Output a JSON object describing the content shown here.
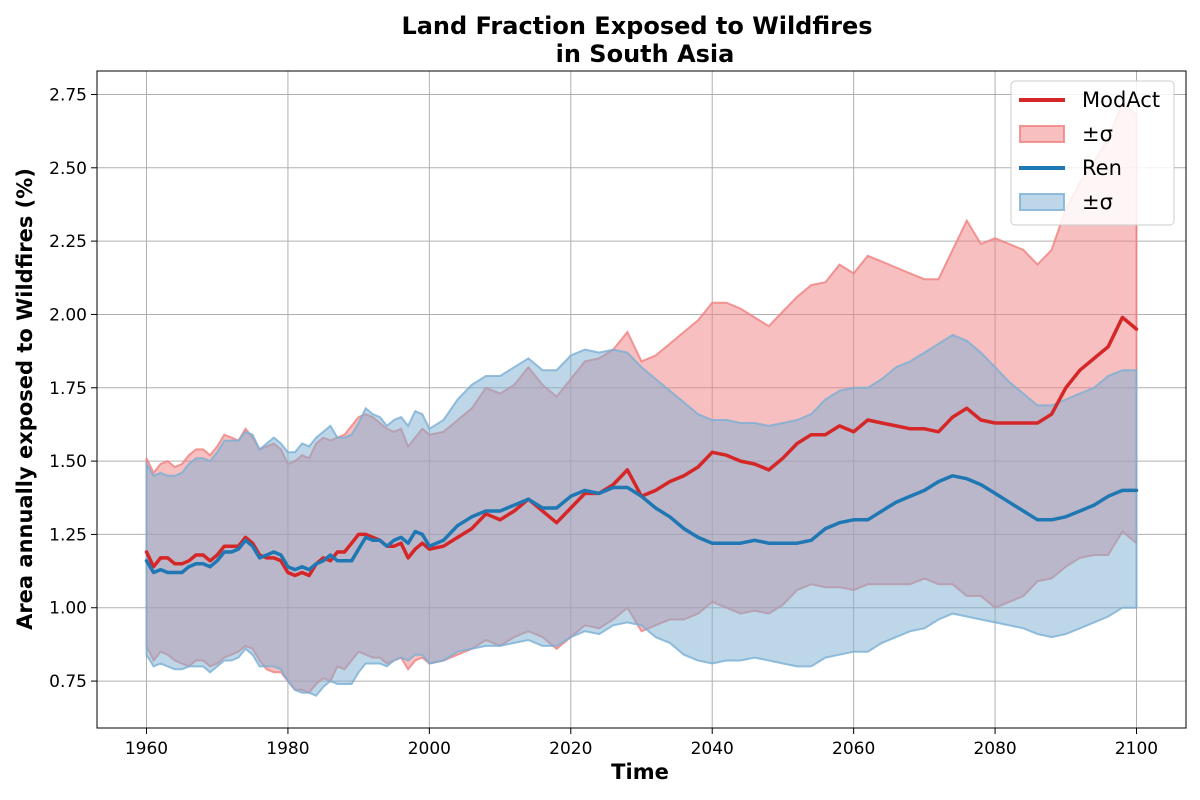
{
  "chart_data": {
    "type": "line",
    "title_line1": "Land Fraction Exposed to Wildfires",
    "title_line2": "in South Asia",
    "xlabel": "Time",
    "ylabel": "Area annually exposed to Wildfires (%)",
    "xlim": [
      1953,
      2107
    ],
    "ylim": [
      0.59,
      2.83
    ],
    "xticks": [
      1960,
      1980,
      2000,
      2020,
      2040,
      2060,
      2080,
      2100
    ],
    "yticks": [
      0.75,
      1.0,
      1.25,
      1.5,
      1.75,
      2.0,
      2.25,
      2.5,
      2.75
    ],
    "ytick_labels": [
      "0.75",
      "1.00",
      "1.25",
      "1.50",
      "1.75",
      "2.00",
      "2.25",
      "2.50",
      "2.75"
    ],
    "grid": true,
    "legend_position": "top-right",
    "legend": [
      {
        "label": "ModAct",
        "kind": "line",
        "series": 0
      },
      {
        "label": "±σ",
        "kind": "band",
        "series": 0
      },
      {
        "label": "Ren",
        "kind": "line",
        "series": 1
      },
      {
        "label": "±σ",
        "kind": "band",
        "series": 1
      }
    ],
    "series": [
      {
        "name": "ModAct",
        "color": "#d62728",
        "band_color": "#f08080",
        "x": [
          1960,
          1961,
          1962,
          1963,
          1964,
          1965,
          1966,
          1967,
          1968,
          1969,
          1970,
          1971,
          1972,
          1973,
          1974,
          1975,
          1976,
          1977,
          1978,
          1979,
          1980,
          1981,
          1982,
          1983,
          1984,
          1985,
          1986,
          1987,
          1988,
          1989,
          1990,
          1991,
          1992,
          1993,
          1994,
          1995,
          1996,
          1997,
          1998,
          1999,
          2000,
          2002,
          2004,
          2006,
          2008,
          2010,
          2012,
          2014,
          2016,
          2018,
          2020,
          2022,
          2024,
          2026,
          2028,
          2030,
          2032,
          2034,
          2036,
          2038,
          2040,
          2042,
          2044,
          2046,
          2048,
          2050,
          2052,
          2054,
          2056,
          2058,
          2060,
          2062,
          2064,
          2066,
          2068,
          2070,
          2072,
          2074,
          2076,
          2078,
          2080,
          2082,
          2084,
          2086,
          2088,
          2090,
          2092,
          2094,
          2096,
          2098,
          2100
        ],
        "mean": [
          1.19,
          1.14,
          1.17,
          1.17,
          1.15,
          1.15,
          1.16,
          1.18,
          1.18,
          1.16,
          1.18,
          1.21,
          1.21,
          1.21,
          1.24,
          1.22,
          1.18,
          1.17,
          1.17,
          1.16,
          1.12,
          1.11,
          1.12,
          1.11,
          1.15,
          1.17,
          1.16,
          1.19,
          1.19,
          1.22,
          1.25,
          1.25,
          1.24,
          1.23,
          1.21,
          1.21,
          1.22,
          1.17,
          1.2,
          1.22,
          1.2,
          1.21,
          1.24,
          1.27,
          1.32,
          1.3,
          1.33,
          1.37,
          1.33,
          1.29,
          1.34,
          1.39,
          1.39,
          1.42,
          1.47,
          1.38,
          1.4,
          1.43,
          1.45,
          1.48,
          1.53,
          1.52,
          1.5,
          1.49,
          1.47,
          1.51,
          1.56,
          1.59,
          1.59,
          1.62,
          1.6,
          1.64,
          1.63,
          1.62,
          1.61,
          1.61,
          1.6,
          1.65,
          1.68,
          1.64,
          1.63,
          1.63,
          1.63,
          1.63,
          1.66,
          1.75,
          1.81,
          1.85,
          1.89,
          1.99,
          1.95
        ],
        "upper": [
          1.51,
          1.46,
          1.49,
          1.5,
          1.48,
          1.49,
          1.52,
          1.54,
          1.54,
          1.52,
          1.55,
          1.59,
          1.58,
          1.57,
          1.61,
          1.58,
          1.54,
          1.55,
          1.56,
          1.54,
          1.49,
          1.5,
          1.52,
          1.51,
          1.56,
          1.58,
          1.57,
          1.58,
          1.59,
          1.62,
          1.65,
          1.66,
          1.65,
          1.63,
          1.61,
          1.6,
          1.61,
          1.55,
          1.58,
          1.61,
          1.59,
          1.6,
          1.64,
          1.68,
          1.75,
          1.73,
          1.76,
          1.82,
          1.76,
          1.72,
          1.78,
          1.84,
          1.85,
          1.88,
          1.94,
          1.84,
          1.86,
          1.9,
          1.94,
          1.98,
          2.04,
          2.04,
          2.02,
          1.99,
          1.96,
          2.01,
          2.06,
          2.1,
          2.11,
          2.17,
          2.14,
          2.2,
          2.18,
          2.16,
          2.14,
          2.12,
          2.12,
          2.22,
          2.32,
          2.24,
          2.26,
          2.24,
          2.22,
          2.17,
          2.22,
          2.36,
          2.45,
          2.52,
          2.6,
          2.72,
          2.68
        ],
        "lower": [
          0.87,
          0.82,
          0.85,
          0.84,
          0.82,
          0.81,
          0.8,
          0.82,
          0.82,
          0.8,
          0.81,
          0.83,
          0.84,
          0.85,
          0.87,
          0.86,
          0.82,
          0.79,
          0.78,
          0.78,
          0.75,
          0.72,
          0.72,
          0.71,
          0.74,
          0.76,
          0.75,
          0.8,
          0.79,
          0.82,
          0.85,
          0.84,
          0.83,
          0.83,
          0.81,
          0.82,
          0.83,
          0.79,
          0.82,
          0.83,
          0.81,
          0.82,
          0.84,
          0.86,
          0.89,
          0.87,
          0.9,
          0.92,
          0.9,
          0.86,
          0.9,
          0.94,
          0.93,
          0.96,
          1.0,
          0.92,
          0.94,
          0.96,
          0.96,
          0.98,
          1.02,
          1.0,
          0.98,
          0.99,
          0.98,
          1.01,
          1.06,
          1.08,
          1.07,
          1.07,
          1.06,
          1.08,
          1.08,
          1.08,
          1.08,
          1.1,
          1.08,
          1.08,
          1.04,
          1.04,
          1.0,
          1.02,
          1.04,
          1.09,
          1.1,
          1.14,
          1.17,
          1.18,
          1.18,
          1.26,
          1.22
        ]
      },
      {
        "name": "Ren",
        "color": "#1f77b4",
        "band_color": "#7bafd4",
        "x": [
          1960,
          1961,
          1962,
          1963,
          1964,
          1965,
          1966,
          1967,
          1968,
          1969,
          1970,
          1971,
          1972,
          1973,
          1974,
          1975,
          1976,
          1977,
          1978,
          1979,
          1980,
          1981,
          1982,
          1983,
          1984,
          1985,
          1986,
          1987,
          1988,
          1989,
          1990,
          1991,
          1992,
          1993,
          1994,
          1995,
          1996,
          1997,
          1998,
          1999,
          2000,
          2002,
          2004,
          2006,
          2008,
          2010,
          2012,
          2014,
          2016,
          2018,
          2020,
          2022,
          2024,
          2026,
          2028,
          2030,
          2032,
          2034,
          2036,
          2038,
          2040,
          2042,
          2044,
          2046,
          2048,
          2050,
          2052,
          2054,
          2056,
          2058,
          2060,
          2062,
          2064,
          2066,
          2068,
          2070,
          2072,
          2074,
          2076,
          2078,
          2080,
          2082,
          2084,
          2086,
          2088,
          2090,
          2092,
          2094,
          2096,
          2098,
          2100
        ],
        "mean": [
          1.16,
          1.12,
          1.13,
          1.12,
          1.12,
          1.12,
          1.14,
          1.15,
          1.15,
          1.14,
          1.16,
          1.19,
          1.19,
          1.2,
          1.23,
          1.21,
          1.17,
          1.18,
          1.19,
          1.18,
          1.14,
          1.13,
          1.14,
          1.13,
          1.15,
          1.16,
          1.18,
          1.16,
          1.16,
          1.16,
          1.2,
          1.24,
          1.23,
          1.23,
          1.21,
          1.23,
          1.24,
          1.22,
          1.26,
          1.25,
          1.21,
          1.23,
          1.28,
          1.31,
          1.33,
          1.33,
          1.35,
          1.37,
          1.34,
          1.34,
          1.38,
          1.4,
          1.39,
          1.41,
          1.41,
          1.38,
          1.34,
          1.31,
          1.27,
          1.24,
          1.22,
          1.22,
          1.22,
          1.23,
          1.22,
          1.22,
          1.22,
          1.23,
          1.27,
          1.29,
          1.3,
          1.3,
          1.33,
          1.36,
          1.38,
          1.4,
          1.43,
          1.45,
          1.44,
          1.42,
          1.39,
          1.36,
          1.33,
          1.3,
          1.3,
          1.31,
          1.33,
          1.35,
          1.38,
          1.4,
          1.4
        ],
        "upper": [
          1.49,
          1.45,
          1.46,
          1.45,
          1.45,
          1.46,
          1.49,
          1.51,
          1.51,
          1.5,
          1.53,
          1.57,
          1.57,
          1.57,
          1.6,
          1.59,
          1.54,
          1.56,
          1.58,
          1.56,
          1.53,
          1.53,
          1.56,
          1.55,
          1.58,
          1.6,
          1.62,
          1.58,
          1.58,
          1.59,
          1.63,
          1.68,
          1.66,
          1.65,
          1.62,
          1.64,
          1.65,
          1.62,
          1.67,
          1.66,
          1.61,
          1.64,
          1.71,
          1.76,
          1.79,
          1.79,
          1.82,
          1.85,
          1.81,
          1.81,
          1.86,
          1.88,
          1.87,
          1.88,
          1.87,
          1.82,
          1.78,
          1.74,
          1.7,
          1.66,
          1.64,
          1.64,
          1.63,
          1.63,
          1.62,
          1.63,
          1.64,
          1.66,
          1.71,
          1.74,
          1.75,
          1.75,
          1.78,
          1.82,
          1.84,
          1.87,
          1.9,
          1.93,
          1.91,
          1.87,
          1.82,
          1.77,
          1.73,
          1.69,
          1.69,
          1.71,
          1.73,
          1.75,
          1.79,
          1.81,
          1.81
        ],
        "lower": [
          0.84,
          0.8,
          0.81,
          0.8,
          0.79,
          0.79,
          0.8,
          0.8,
          0.8,
          0.78,
          0.8,
          0.82,
          0.82,
          0.83,
          0.86,
          0.84,
          0.8,
          0.8,
          0.8,
          0.79,
          0.75,
          0.72,
          0.71,
          0.71,
          0.7,
          0.73,
          0.75,
          0.74,
          0.74,
          0.74,
          0.78,
          0.81,
          0.81,
          0.81,
          0.8,
          0.82,
          0.83,
          0.82,
          0.84,
          0.84,
          0.81,
          0.82,
          0.85,
          0.86,
          0.87,
          0.87,
          0.88,
          0.89,
          0.87,
          0.87,
          0.9,
          0.92,
          0.91,
          0.94,
          0.95,
          0.94,
          0.9,
          0.88,
          0.84,
          0.82,
          0.81,
          0.82,
          0.82,
          0.83,
          0.82,
          0.81,
          0.8,
          0.8,
          0.83,
          0.84,
          0.85,
          0.85,
          0.88,
          0.9,
          0.92,
          0.93,
          0.96,
          0.98,
          0.97,
          0.96,
          0.95,
          0.94,
          0.93,
          0.91,
          0.9,
          0.91,
          0.93,
          0.95,
          0.97,
          1.0,
          1.0
        ]
      }
    ]
  }
}
